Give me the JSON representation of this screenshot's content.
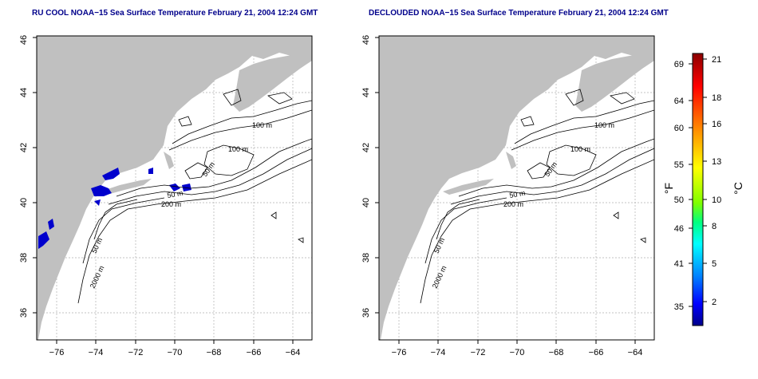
{
  "panels": [
    {
      "id": "left",
      "title": "RU COOL NOAA−15 Sea Surface Temperature February 21, 2004 12:24 GMT",
      "x_ticks": [
        "−76",
        "−74",
        "−72",
        "−70",
        "−68",
        "−66",
        "−64"
      ],
      "y_ticks": [
        "36",
        "38",
        "40",
        "42",
        "44",
        "46"
      ],
      "contour_labels": [
        "100 m",
        "100 m",
        "50 m",
        "50 m",
        "200 m",
        "50 m",
        "2000 m"
      ],
      "show_cold_patches": true
    },
    {
      "id": "right",
      "title": "DECLOUDED NOAA−15 Sea Surface Temperature February 21, 2004 12:24 GMT",
      "x_ticks": [
        "−76",
        "−74",
        "−72",
        "−70",
        "−68",
        "−66",
        "−64"
      ],
      "y_ticks": [
        "36",
        "38",
        "40",
        "42",
        "44",
        "46"
      ],
      "contour_labels": [
        "100 m",
        "100 m",
        "50 m",
        "50 m",
        "200 m",
        "50 m",
        "2000 m"
      ],
      "show_cold_patches": false
    }
  ],
  "colorbar": {
    "left_unit": "°F",
    "right_unit": "°C",
    "fahrenheit_ticks": [
      "69",
      "64",
      "60",
      "55",
      "50",
      "46",
      "41",
      "35"
    ],
    "celsius_ticks": [
      "21",
      "18",
      "16",
      "13",
      "10",
      "8",
      "5",
      "2"
    ],
    "colors": [
      "#8b0000",
      "#ff0000",
      "#ff8c00",
      "#ffff00",
      "#00ff7f",
      "#00ffff",
      "#0080ff",
      "#0000ff",
      "#00008b"
    ]
  },
  "colors": {
    "land": "#c0c0c0",
    "title": "#00008b",
    "cold_patch": "#0000cd",
    "contour": "#000000",
    "grid": "#b0b0b0"
  }
}
